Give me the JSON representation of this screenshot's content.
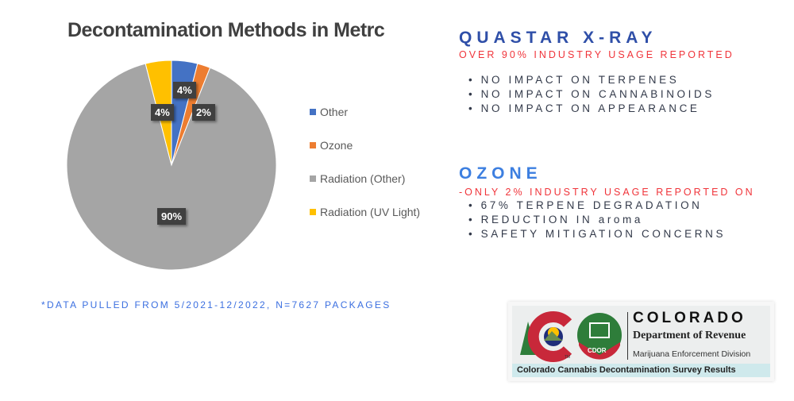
{
  "chart_data": {
    "type": "pie",
    "title": "Decontamination Methods in Metrc",
    "categories": [
      "Other",
      "Ozone",
      "Radiation (Other)",
      "Radiation (UV Light)"
    ],
    "values": [
      4,
      2,
      90,
      4
    ],
    "data_labels": [
      "4%",
      "2%",
      "90%",
      "4%"
    ],
    "colors": [
      "#4472c4",
      "#ed7d31",
      "#a5a5a5",
      "#ffc000"
    ],
    "legend_position": "right"
  },
  "quastar": {
    "title": "QUASTAR X-RAY",
    "subtitle": "OVER 90% INDUSTRY USAGE REPORTED",
    "bullets": [
      "• NO IMPACT ON TERPENES",
      "• NO IMPACT ON CANNABINOIDS",
      "• NO IMPACT ON APPEARANCE"
    ]
  },
  "ozone": {
    "title": "OZONE",
    "subtitle": "-ONLY 2% INDUSTRY USAGE REPORTED ON",
    "bullets": [
      "• 67% TERPENE DEGRADATION",
      "• REDUCTION IN aroma",
      "• SAFETY MITIGATION CONCERNS"
    ]
  },
  "footnote": "*DATA PULLED FROM 5/2021-12/2022, N=7627 PACKAGES",
  "logo": {
    "state": "COLORADO",
    "dept": "Department of Revenue",
    "division": "Marijuana Enforcement Division",
    "badge": "CDOR",
    "tm": "TM",
    "banner": "Colorado Cannabis Decontamination Survey Results"
  }
}
